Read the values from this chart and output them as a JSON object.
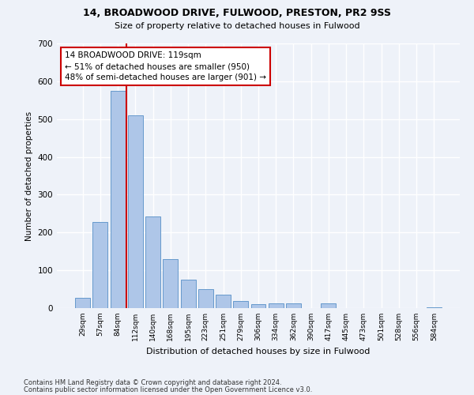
{
  "title1": "14, BROADWOOD DRIVE, FULWOOD, PRESTON, PR2 9SS",
  "title2": "Size of property relative to detached houses in Fulwood",
  "xlabel": "Distribution of detached houses by size in Fulwood",
  "ylabel": "Number of detached properties",
  "categories": [
    "29sqm",
    "57sqm",
    "84sqm",
    "112sqm",
    "140sqm",
    "168sqm",
    "195sqm",
    "223sqm",
    "251sqm",
    "279sqm",
    "306sqm",
    "334sqm",
    "362sqm",
    "390sqm",
    "417sqm",
    "445sqm",
    "473sqm",
    "501sqm",
    "528sqm",
    "556sqm",
    "584sqm"
  ],
  "values": [
    28,
    228,
    575,
    510,
    242,
    130,
    75,
    50,
    35,
    18,
    10,
    13,
    13,
    0,
    13,
    0,
    0,
    0,
    0,
    0,
    2
  ],
  "bar_color": "#aec6e8",
  "bar_edge_color": "#6699cc",
  "vline_color": "#cc0000",
  "annotation_text": "14 BROADWOOD DRIVE: 119sqm\n← 51% of detached houses are smaller (950)\n48% of semi-detached houses are larger (901) →",
  "annotation_box_color": "white",
  "annotation_box_edge": "#cc0000",
  "ylim": [
    0,
    700
  ],
  "yticks": [
    0,
    100,
    200,
    300,
    400,
    500,
    600,
    700
  ],
  "footer1": "Contains HM Land Registry data © Crown copyright and database right 2024.",
  "footer2": "Contains public sector information licensed under the Open Government Licence v3.0.",
  "bg_color": "#eef2f9",
  "grid_color": "white"
}
